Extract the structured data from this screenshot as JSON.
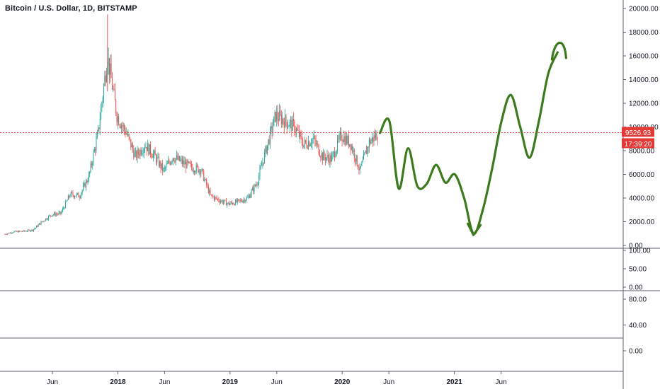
{
  "header": {
    "title": "Bitcoin / U.S. Dollar, 1D, BITSTAMP"
  },
  "colors": {
    "up": "#26a69a",
    "down": "#ef5350",
    "price_line": "#e53935",
    "price_tag": "#e53935",
    "drawing": "#3c7a1e",
    "axis_text": "#131722",
    "divider": "#5d606b"
  },
  "price_tags": {
    "last_price": "9526.93",
    "countdown": "17:39:20"
  },
  "chart_data": [
    {
      "type": "candlestick",
      "title": "Bitcoin / U.S. Dollar, 1D, BITSTAMP",
      "x_ticks": [
        "Jun",
        "2018",
        "Jun",
        "2019",
        "Jun",
        "2020",
        "Jun",
        "2021",
        "Jun"
      ],
      "y_ticks": [
        "0.00",
        "2000.00",
        "4000.00",
        "6000.00",
        "8000.00",
        "10000.00",
        "12000.00",
        "14000.00",
        "16000.00",
        "18000.00",
        "20000.00"
      ],
      "ylim": [
        0,
        20000
      ],
      "last_price": 9526.93,
      "series": [
        {
          "x": [
            "2017-01",
            "2017-02",
            "2017-03",
            "2017-04",
            "2017-05",
            "2017-06",
            "2017-07",
            "2017-08",
            "2017-09",
            "2017-10",
            "2017-11",
            "2017-12",
            "2018-01",
            "2018-02",
            "2018-03",
            "2018-04",
            "2018-05",
            "2018-06",
            "2018-07",
            "2018-08",
            "2018-09",
            "2018-10",
            "2018-11",
            "2018-12",
            "2019-01",
            "2019-02",
            "2019-03",
            "2019-04",
            "2019-05",
            "2019-06",
            "2019-07",
            "2019-08",
            "2019-09",
            "2019-10",
            "2019-11",
            "2019-12",
            "2020-01",
            "2020-02",
            "2020-03",
            "2020-04",
            "2020-05"
          ],
          "values": [
            950,
            1150,
            1200,
            1300,
            2000,
            2600,
            2700,
            4300,
            4200,
            5800,
            9500,
            16000,
            11000,
            9500,
            7500,
            8500,
            7600,
            6300,
            7500,
            7000,
            6600,
            6400,
            4200,
            3800,
            3500,
            3700,
            4000,
            5300,
            8200,
            11000,
            10500,
            10000,
            8500,
            9000,
            7500,
            7300,
            9300,
            8600,
            6300,
            8700,
            9500
          ]
        }
      ],
      "annotation_path": {
        "x": [
          "2020-05",
          "2020-06",
          "2020-07",
          "2020-08",
          "2020-09",
          "2020-10",
          "2020-11",
          "2020-12",
          "2021-01",
          "2021-02",
          "2021-03",
          "2021-04",
          "2021-05",
          "2021-06",
          "2021-07",
          "2021-08",
          "2021-09",
          "2021-10",
          "2021-11",
          "2021-12"
        ],
        "values": [
          9500,
          10500,
          4800,
          8200,
          5000,
          5200,
          6800,
          5300,
          6000,
          4000,
          1000,
          3000,
          6500,
          10500,
          12700,
          10000,
          7400,
          10500,
          14500,
          16300
        ]
      }
    },
    {
      "type": "indicator",
      "y_ticks": [
        "0.00",
        "50.00",
        "100.00"
      ],
      "ylim": [
        0,
        100
      ]
    },
    {
      "type": "indicator",
      "y_ticks": [
        "0.00",
        "40.00",
        "80.00"
      ],
      "ylim": [
        0,
        80
      ]
    }
  ]
}
